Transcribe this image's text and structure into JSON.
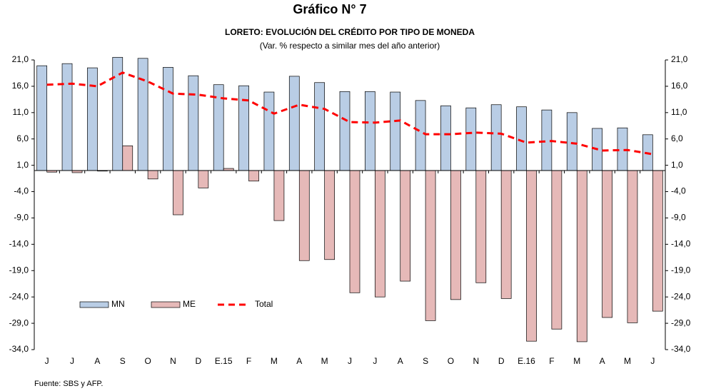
{
  "chart_data": {
    "type": "bar_line",
    "title": "Gráfico N° 7",
    "subtitle": "LORETO: EVOLUCIÓN DEL CRÉDITO POR TIPO DE MONEDA",
    "subtitle2": "(Var. % respecto a similar mes del año anterior)",
    "source": "Fuente: SBS y AFP.",
    "categories": [
      "J",
      "J",
      "A",
      "S",
      "O",
      "N",
      "D",
      "E.15",
      "F",
      "M",
      "A",
      "M",
      "J",
      "J",
      "A",
      "S",
      "O",
      "N",
      "D",
      "E.16",
      "F",
      "M",
      "A",
      "M",
      "J"
    ],
    "series": [
      {
        "name": "MN",
        "type": "bar",
        "color": "#b9cde5",
        "values": [
          19.9,
          20.3,
          19.5,
          21.5,
          21.3,
          19.6,
          18.0,
          16.3,
          16.1,
          14.9,
          17.9,
          16.7,
          15.0,
          15.0,
          14.9,
          13.3,
          12.3,
          11.9,
          12.5,
          12.1,
          11.5,
          11.0,
          8.0,
          8.1,
          6.8
        ]
      },
      {
        "name": "ME",
        "type": "bar",
        "color": "#e6b9b8",
        "values": [
          -0.3,
          -0.4,
          -0.1,
          4.7,
          -1.6,
          -8.4,
          -3.3,
          0.4,
          -2.0,
          -9.5,
          -17.1,
          -16.9,
          -23.2,
          -24.0,
          -21.0,
          -28.5,
          -24.5,
          -21.3,
          -24.3,
          -32.4,
          -30.1,
          -32.5,
          -27.9,
          -28.9,
          -26.7
        ]
      },
      {
        "name": "Total",
        "type": "line",
        "color": "#ff0000",
        "values": [
          16.3,
          16.5,
          16.0,
          18.6,
          16.9,
          14.6,
          14.4,
          13.7,
          13.3,
          10.8,
          12.5,
          11.7,
          9.2,
          9.1,
          9.5,
          6.9,
          6.9,
          7.2,
          7.0,
          5.3,
          5.6,
          5.1,
          3.8,
          3.9,
          3.1
        ]
      }
    ],
    "ylim": [
      -34,
      21
    ],
    "yticks": [
      {
        "value": 21,
        "label": "21,0"
      },
      {
        "value": 16,
        "label": "16,0"
      },
      {
        "value": 11,
        "label": "11,0"
      },
      {
        "value": 6,
        "label": "6,0"
      },
      {
        "value": 1,
        "label": "1,0"
      },
      {
        "value": -4,
        "label": "-4,0"
      },
      {
        "value": -9,
        "label": "-9,0"
      },
      {
        "value": -14,
        "label": "-14,0"
      },
      {
        "value": -19,
        "label": "-19,0"
      },
      {
        "value": -24,
        "label": "-24,0"
      },
      {
        "value": -29,
        "label": "-29,0"
      },
      {
        "value": -34,
        "label": "-34,0"
      }
    ],
    "y2lim": [
      -34,
      21
    ],
    "y2ticks": [
      {
        "value": 21,
        "label": "21,0"
      },
      {
        "value": 16,
        "label": "16,0"
      },
      {
        "value": 11,
        "label": "11,0"
      },
      {
        "value": 6,
        "label": "6,0"
      },
      {
        "value": 1,
        "label": "1,0"
      },
      {
        "value": -4,
        "label": "-4,0"
      },
      {
        "value": -9,
        "label": "-9,0"
      },
      {
        "value": -14,
        "label": "-14,0"
      },
      {
        "value": -19,
        "label": "-19,0"
      },
      {
        "value": -24,
        "label": "-24,0"
      },
      {
        "value": -29,
        "label": "-29,0"
      },
      {
        "value": -34,
        "label": "-34,0"
      }
    ],
    "grid": false
  }
}
